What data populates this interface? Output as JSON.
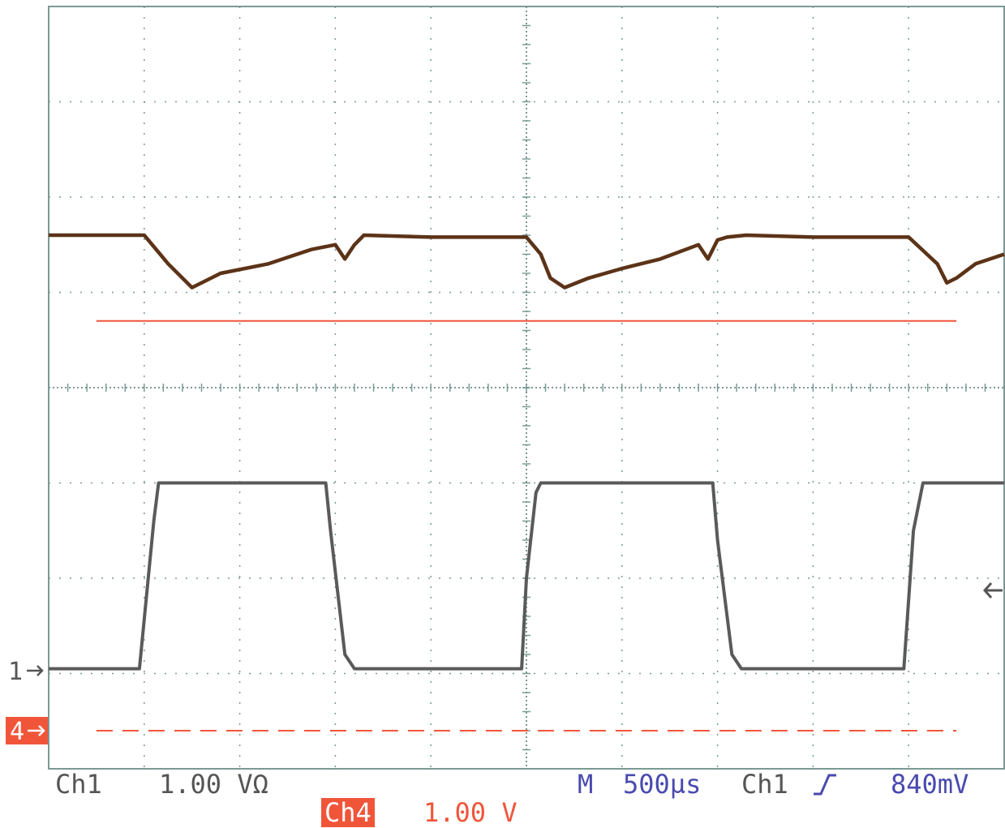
{
  "colors": {
    "grid": "#7a9a94",
    "ch1_trace": "#5a5a5a",
    "math_trace": "#5c3318",
    "ch4": "#f0553a",
    "timebase_text": "#4a4ab0",
    "ch1_text": "#555555"
  },
  "markers": {
    "ch1": "1",
    "ch4": "4"
  },
  "readouts": {
    "ch1_label": "Ch1",
    "ch1_scale": "1.00 VΩ",
    "timebase_label": "M",
    "timebase": "500µs",
    "trigger_source": "Ch1",
    "trigger_slope_icon": "rising-edge-icon",
    "trigger_level": "840mV",
    "ch4_label": "Ch4",
    "ch4_scale": "1.00 V"
  },
  "chart_data": {
    "type": "line",
    "xlabel": "",
    "ylabel": "",
    "grid": true,
    "divisions": {
      "x": 10,
      "y": 8
    },
    "xlim": [
      0,
      10
    ],
    "ylim": [
      0,
      8
    ],
    "series": [
      {
        "id": "math",
        "x": [
          0,
          1.0,
          1.25,
          1.5,
          1.8,
          2.3,
          2.75,
          3.0,
          3.1,
          3.2,
          3.3,
          4.0,
          5.0,
          5.15,
          5.25,
          5.4,
          5.65,
          6.0,
          6.4,
          6.8,
          6.9,
          7.0,
          7.1,
          7.3,
          8.0,
          9.0,
          9.3,
          9.4,
          9.5,
          9.7,
          10.0
        ],
        "y": [
          5.6,
          5.6,
          5.3,
          5.05,
          5.2,
          5.3,
          5.45,
          5.5,
          5.35,
          5.5,
          5.6,
          5.58,
          5.58,
          5.4,
          5.15,
          5.05,
          5.15,
          5.25,
          5.35,
          5.5,
          5.35,
          5.55,
          5.58,
          5.6,
          5.58,
          5.58,
          5.3,
          5.1,
          5.15,
          5.3,
          5.4
        ]
      },
      {
        "id": "ch4-upper-reference",
        "x": [
          0.5,
          9.5
        ],
        "y": [
          4.7,
          4.7
        ]
      },
      {
        "id": "ch1",
        "x": [
          0,
          0.95,
          1.1,
          1.15,
          2.9,
          2.95,
          3.1,
          3.2,
          4.95,
          5.0,
          5.1,
          5.15,
          6.95,
          7.0,
          7.15,
          7.25,
          8.95,
          9.05,
          9.15,
          10.0
        ],
        "y": [
          1.05,
          1.05,
          2.6,
          3.0,
          3.0,
          2.5,
          1.2,
          1.05,
          1.05,
          2.0,
          2.9,
          3.0,
          3.0,
          2.4,
          1.2,
          1.05,
          1.05,
          2.5,
          3.0,
          3.0
        ]
      },
      {
        "id": "ch4",
        "x": [
          0.5,
          9.5
        ],
        "y": [
          0.4,
          0.4
        ]
      }
    ]
  }
}
